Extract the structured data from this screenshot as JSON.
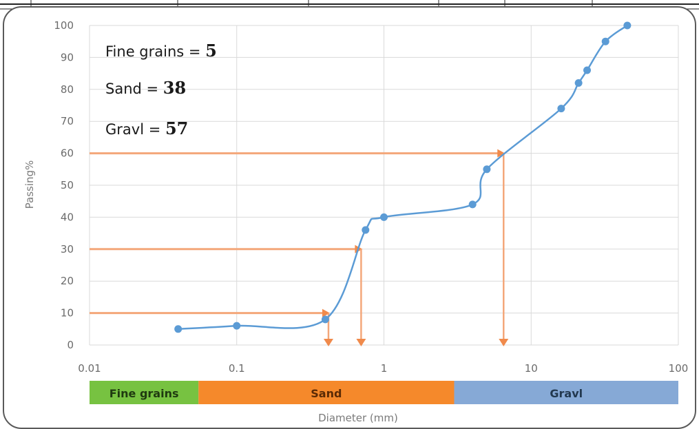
{
  "chart_data": {
    "type": "line",
    "x_scale": "log",
    "xlabel": "Diameter (mm)",
    "ylabel": "Passing%",
    "xlim": [
      0.01,
      100
    ],
    "ylim": [
      0,
      100
    ],
    "x_ticks": [
      "0.01",
      "0.1",
      "1",
      "10",
      "100"
    ],
    "y_ticks": [
      "0",
      "10",
      "20",
      "30",
      "40",
      "50",
      "60",
      "70",
      "80",
      "90",
      "100"
    ],
    "grid": true,
    "series": [
      {
        "color": "#5b9bd5",
        "x": [
          0.04,
          0.1,
          0.4,
          0.75,
          1.0,
          4.0,
          5.0,
          16.0,
          21.0,
          24.0,
          32.0,
          45.0
        ],
        "y": [
          5,
          6,
          8,
          36,
          40,
          44,
          55,
          74,
          82,
          86,
          95,
          100
        ]
      }
    ],
    "guides": {
      "color": "#f4a77a",
      "lines": [
        {
          "y": 10,
          "x": 0.42
        },
        {
          "y": 30,
          "x": 0.7
        },
        {
          "y": 60,
          "x": 6.5
        }
      ]
    },
    "annotations": [
      {
        "label": "Fine grains =",
        "value": "5"
      },
      {
        "label": "Sand =",
        "value": "38"
      },
      {
        "label": "Gravl =",
        "value": "57"
      }
    ],
    "bands": [
      {
        "label": "Fine grains",
        "from": 0.01,
        "to": 0.055,
        "color": "#77c241",
        "text_color": "#1f3a10"
      },
      {
        "label": "Sand",
        "from": 0.055,
        "to": 3.0,
        "color": "#f5892b",
        "text_color": "#5a2a05"
      },
      {
        "label": "Gravl",
        "from": 3.0,
        "to": 100,
        "color": "#86a9d6",
        "text_color": "#22384f"
      }
    ]
  }
}
